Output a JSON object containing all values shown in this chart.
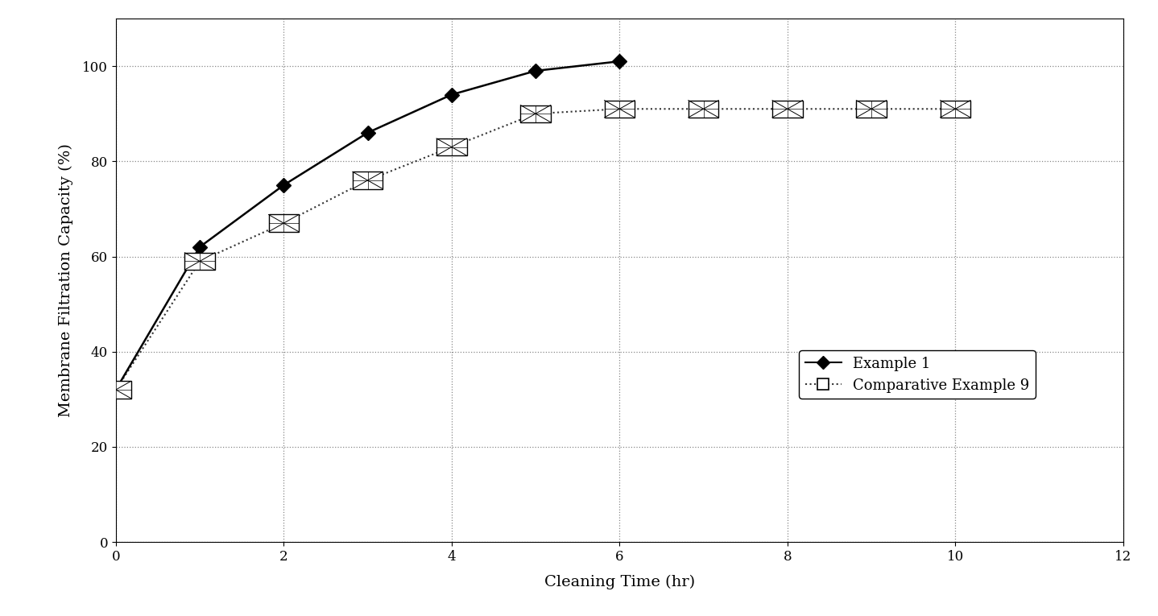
{
  "example1_x": [
    0,
    1,
    2,
    3,
    4,
    5,
    6
  ],
  "example1_y": [
    32,
    62,
    75,
    86,
    94,
    99,
    101
  ],
  "comp9_x": [
    0,
    1,
    2,
    3,
    4,
    5,
    6,
    7,
    8,
    9,
    10
  ],
  "comp9_y": [
    32,
    59,
    67,
    76,
    83,
    90,
    91,
    91,
    91,
    91,
    91
  ],
  "xlabel": "Cleaning Time (hr)",
  "ylabel": "Membrane Filtration Capacity (%)",
  "xlim": [
    0,
    12
  ],
  "ylim": [
    0,
    110
  ],
  "xticks": [
    0,
    2,
    4,
    6,
    8,
    10,
    12
  ],
  "yticks": [
    0,
    20,
    40,
    60,
    80,
    100
  ],
  "grid_color": "#555555",
  "line1_color": "#000000",
  "line2_color": "#333333",
  "legend_labels": [
    "Example 1",
    "Comparative Example 9"
  ],
  "axis_fontsize": 14,
  "tick_fontsize": 12,
  "legend_fontsize": 13,
  "bg_color": "#ffffff",
  "fig_bg_color": "#ffffff"
}
